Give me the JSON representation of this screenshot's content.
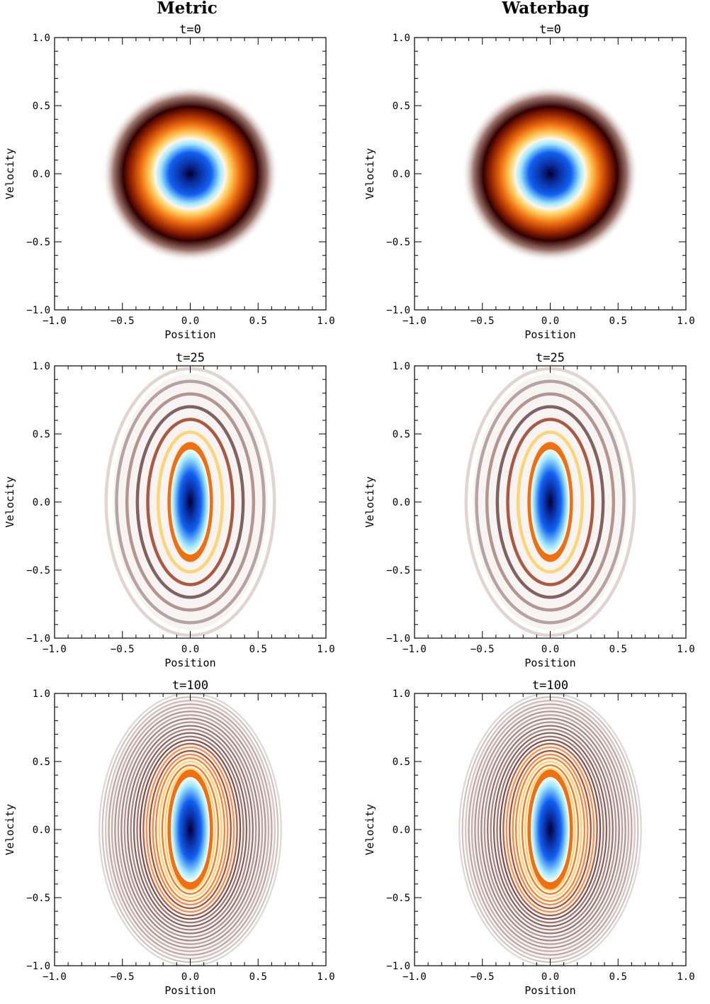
{
  "columns": [
    {
      "title": "Metric"
    },
    {
      "title": "Waterbag"
    }
  ],
  "colors": {
    "core": "#000030",
    "blue": "#1060f0",
    "cyan": "#a0e8ff",
    "orange": "#f07010",
    "yellow": "#ffd060",
    "dark_brown": "#300000",
    "background": "#ffffff"
  },
  "chart_data": [
    {
      "type": "heatmap",
      "column": "Metric",
      "title": "t=0",
      "xlabel": "Position",
      "ylabel": "Velocity",
      "xlim": [
        -1.0,
        1.0
      ],
      "ylim": [
        -1.0,
        1.0
      ],
      "xticks": [
        "−1.0",
        "−0.5",
        "0.0",
        "0.5",
        "1.0"
      ],
      "yticks": [
        "−1.0",
        "−0.5",
        "0.0",
        "0.5",
        "1.0"
      ],
      "pattern": "disc",
      "extent_x": 0.65,
      "extent_y": 0.65,
      "rings": 0
    },
    {
      "type": "heatmap",
      "column": "Waterbag",
      "title": "t=0",
      "xlabel": "Position",
      "ylabel": "Velocity",
      "xlim": [
        -1.0,
        1.0
      ],
      "ylim": [
        -1.0,
        1.0
      ],
      "xticks": [
        "−1.0",
        "−0.5",
        "0.0",
        "0.5",
        "1.0"
      ],
      "yticks": [
        "−1.0",
        "−0.5",
        "0.0",
        "0.5",
        "1.0"
      ],
      "pattern": "disc",
      "extent_x": 0.65,
      "extent_y": 0.65,
      "rings": 0
    },
    {
      "type": "heatmap",
      "column": "Metric",
      "title": "t=25",
      "xlabel": "Position",
      "ylabel": "Velocity",
      "xlim": [
        -1.0,
        1.0
      ],
      "ylim": [
        -1.0,
        1.0
      ],
      "xticks": [
        "−1.0",
        "−0.5",
        "0.0",
        "0.5",
        "1.0"
      ],
      "yticks": [
        "−1.0",
        "−0.5",
        "0.0",
        "0.5",
        "1.0"
      ],
      "pattern": "spiral",
      "extent_x": 0.62,
      "extent_y": 0.98,
      "rings": 6
    },
    {
      "type": "heatmap",
      "column": "Waterbag",
      "title": "t=25",
      "xlabel": "Position",
      "ylabel": "Velocity",
      "xlim": [
        -1.0,
        1.0
      ],
      "ylim": [
        -1.0,
        1.0
      ],
      "xticks": [
        "−1.0",
        "−0.5",
        "0.0",
        "0.5",
        "1.0"
      ],
      "yticks": [
        "−1.0",
        "−0.5",
        "0.0",
        "0.5",
        "1.0"
      ],
      "pattern": "spiral",
      "extent_x": 0.62,
      "extent_y": 0.98,
      "rings": 6
    },
    {
      "type": "heatmap",
      "column": "Metric",
      "title": "t=100",
      "xlabel": "Position",
      "ylabel": "Velocity",
      "xlim": [
        -1.0,
        1.0
      ],
      "ylim": [
        -1.0,
        1.0
      ],
      "xticks": [
        "−1.0",
        "−0.5",
        "0.0",
        "0.5",
        "1.0"
      ],
      "yticks": [
        "−1.0",
        "−0.5",
        "0.0",
        "0.5",
        "1.0"
      ],
      "pattern": "spiral",
      "extent_x": 0.67,
      "extent_y": 1.0,
      "rings": 22
    },
    {
      "type": "heatmap",
      "column": "Waterbag",
      "title": "t=100",
      "xlabel": "Position",
      "ylabel": "Velocity",
      "xlim": [
        -1.0,
        1.0
      ],
      "ylim": [
        -1.0,
        1.0
      ],
      "xticks": [
        "−1.0",
        "−0.5",
        "0.0",
        "0.5",
        "1.0"
      ],
      "yticks": [
        "−1.0",
        "−0.5",
        "0.0",
        "0.5",
        "1.0"
      ],
      "pattern": "spiral",
      "extent_x": 0.67,
      "extent_y": 1.0,
      "rings": 22
    }
  ]
}
